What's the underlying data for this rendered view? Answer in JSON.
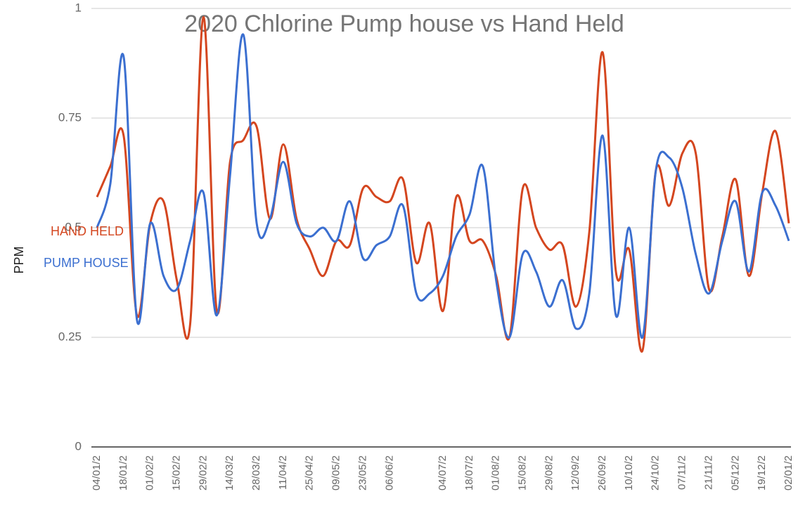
{
  "chart_data": {
    "type": "line",
    "title": "2020 Chlorine Pump house vs Hand Held",
    "y_label": "PPM",
    "categories": [
      "04/01/2",
      null,
      "18/01/2",
      null,
      "01/02/2",
      null,
      "15/02/2",
      null,
      "29/02/2",
      null,
      "14/03/2",
      null,
      "28/03/2",
      null,
      "11/04/2",
      null,
      "25/04/2",
      null,
      "09/05/2",
      null,
      "23/05/2",
      null,
      "06/06/2",
      null,
      null,
      null,
      "04/07/2",
      null,
      "18/07/2",
      null,
      "01/08/2",
      null,
      "15/08/2",
      null,
      "29/08/2",
      null,
      "12/09/2",
      null,
      "26/09/2",
      null,
      "10/10/2",
      null,
      "24/10/2",
      null,
      "07/11/2",
      null,
      "21/11/2",
      null,
      "05/12/2",
      null,
      "19/12/2",
      null,
      "02/01/2"
    ],
    "series": [
      {
        "name": "HAND HELD",
        "color": "#d4461f",
        "values": [
          0.57,
          0.64,
          0.71,
          0.3,
          0.51,
          0.56,
          0.38,
          0.28,
          0.98,
          0.31,
          0.65,
          0.7,
          0.73,
          0.52,
          0.69,
          0.52,
          0.45,
          0.39,
          0.47,
          0.46,
          0.59,
          0.57,
          0.56,
          0.61,
          0.42,
          0.51,
          0.31,
          0.57,
          0.47,
          0.47,
          0.39,
          0.25,
          0.59,
          0.5,
          0.45,
          0.46,
          0.32,
          0.49,
          0.9,
          0.4,
          0.45,
          0.22,
          0.63,
          0.55,
          0.67,
          0.67,
          0.36,
          0.48,
          0.61,
          0.39,
          0.58,
          0.72,
          0.51
        ]
      },
      {
        "name": "PUMP HOUSE",
        "color": "#3b6fd0",
        "values": [
          0.5,
          0.6,
          0.89,
          0.29,
          0.51,
          0.39,
          0.36,
          0.47,
          0.58,
          0.3,
          0.62,
          0.94,
          0.51,
          0.52,
          0.65,
          0.51,
          0.48,
          0.5,
          0.47,
          0.56,
          0.43,
          0.46,
          0.48,
          0.55,
          0.35,
          0.35,
          0.39,
          0.48,
          0.53,
          0.64,
          0.38,
          0.25,
          0.44,
          0.4,
          0.32,
          0.38,
          0.27,
          0.35,
          0.71,
          0.3,
          0.5,
          0.25,
          0.63,
          0.66,
          0.59,
          0.44,
          0.35,
          0.47,
          0.56,
          0.4,
          0.58,
          0.55,
          0.47
        ]
      }
    ],
    "ylim": [
      0,
      1
    ],
    "yticks": [
      0,
      0.25,
      0.5,
      0.75,
      1
    ],
    "grid": true,
    "legend": "left"
  }
}
